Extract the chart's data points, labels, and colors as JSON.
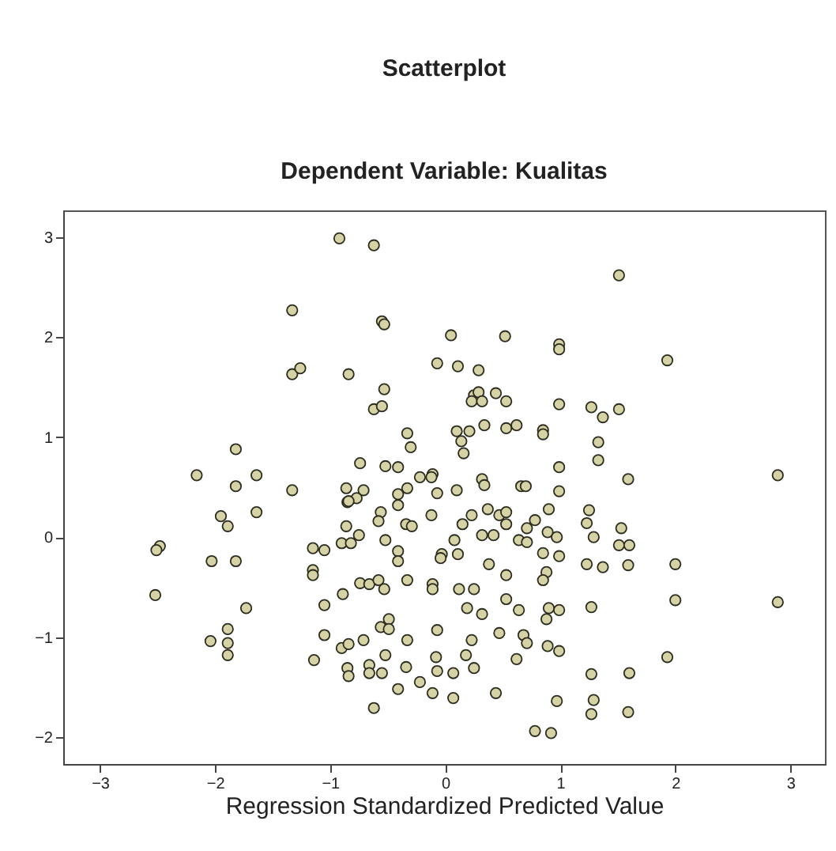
{
  "chart_data": {
    "type": "scatter",
    "title": "Scatterplot",
    "subtitle": "Dependent Variable: Kualitas",
    "xlabel": "Regression Standardized Predicted Value",
    "xlim": [
      -3.32,
      3.3
    ],
    "ylim": [
      -2.27,
      3.27
    ],
    "xticks": [
      -3,
      -2,
      -1,
      0,
      1,
      2,
      3
    ],
    "yticks": [
      -2,
      -1,
      0,
      1,
      2,
      3
    ],
    "grid": false,
    "marker": "circle",
    "x": [
      -0.92,
      -0.62,
      -1.33,
      -0.55,
      -0.53,
      -0.07,
      -1.33,
      -1.26,
      -0.84,
      -0.53,
      -0.62,
      -0.55,
      -0.33,
      -0.3,
      -1.82,
      -2.16,
      -1.82,
      -1.64,
      -1.33,
      -0.74,
      -0.52,
      -0.41,
      -0.22,
      -0.11,
      -0.12,
      -0.07,
      -0.33,
      -0.41,
      -0.86,
      -0.71,
      -0.77,
      -0.85,
      0.05,
      1.51,
      0.52,
      0.99,
      0.99,
      1.93,
      0.11,
      0.29,
      0.25,
      0.29,
      0.23,
      0.32,
      0.44,
      0.53,
      0.99,
      1.27,
      1.37,
      1.51,
      0.1,
      0.21,
      0.14,
      0.16,
      0.34,
      0.53,
      0.62,
      0.85,
      0.85,
      1.33,
      1.33,
      0.99,
      1.59,
      2.89,
      0.32,
      0.34,
      0.66,
      0.7,
      0.99,
      0.1,
      -2.48,
      -2.51,
      -2.52,
      -1.95,
      -1.89,
      -1.64,
      -2.03,
      -1.82,
      -1.73,
      -1.89,
      -2.04,
      -1.89,
      -1.89,
      -1.15,
      -1.05,
      -1.15,
      -1.15,
      -1.05,
      -1.05,
      -1.14,
      -0.9,
      -0.82,
      -0.86,
      -0.75,
      -0.84,
      -0.56,
      -0.58,
      -0.41,
      -0.52,
      -0.41,
      -0.41,
      -0.34,
      -0.29,
      -0.12,
      -0.03,
      -0.04,
      -0.89,
      -0.74,
      -0.66,
      -0.58,
      -0.53,
      -0.33,
      -0.11,
      -0.11,
      -0.49,
      -0.56,
      -0.49,
      -0.71,
      -0.9,
      -0.84,
      -0.33,
      -0.07,
      -0.52,
      -0.85,
      -0.84,
      -0.66,
      -0.66,
      -0.55,
      -0.34,
      -0.41,
      -0.22,
      -0.11,
      -0.08,
      -0.07,
      -0.62,
      0.23,
      0.37,
      0.47,
      0.53,
      0.15,
      0.32,
      0.42,
      0.53,
      0.71,
      0.78,
      0.9,
      0.64,
      0.71,
      0.89,
      0.97,
      1.25,
      1.23,
      1.29,
      1.53,
      1.51,
      1.6,
      0.08,
      0.11,
      0.38,
      0.85,
      0.99,
      1.23,
      1.37,
      1.59,
      2.0,
      0.53,
      0.88,
      0.85,
      0.12,
      0.25,
      0.53,
      0.19,
      0.32,
      0.64,
      0.88,
      0.9,
      0.99,
      1.27,
      2.0,
      2.89,
      0.47,
      0.23,
      0.68,
      0.71,
      0.89,
      0.99,
      0.62,
      0.18,
      0.25,
      0.07,
      1.93,
      1.27,
      1.6,
      0.07,
      0.44,
      0.97,
      1.29,
      1.27,
      1.59,
      0.78,
      0.92
    ],
    "series": [
      {
        "color": "#d5d3a6",
        "values": [
          2.99,
          2.92,
          2.27,
          2.16,
          2.13,
          1.74,
          1.63,
          1.69,
          1.63,
          1.48,
          1.28,
          1.31,
          1.04,
          0.9,
          0.88,
          0.62,
          0.51,
          0.62,
          0.47,
          0.74,
          0.71,
          0.7,
          0.6,
          0.63,
          0.6,
          0.44,
          0.49,
          0.43,
          0.49,
          0.47,
          0.39,
          0.35,
          2.02,
          2.62,
          2.01,
          1.93,
          1.88,
          1.77,
          1.71,
          1.67,
          1.42,
          1.45,
          1.36,
          1.36,
          1.44,
          1.36,
          1.33,
          1.3,
          1.2,
          1.28,
          1.06,
          1.06,
          0.96,
          0.84,
          1.12,
          1.09,
          1.12,
          1.07,
          1.03,
          0.95,
          0.77,
          0.7,
          0.58,
          0.62,
          0.58,
          0.52,
          0.51,
          0.51,
          0.46,
          0.47,
          -0.09,
          -0.13,
          -0.58,
          0.21,
          0.11,
          0.25,
          -0.24,
          -0.24,
          -0.71,
          -0.92,
          -1.04,
          -1.06,
          -1.18,
          -0.11,
          -0.13,
          -0.33,
          -0.38,
          -0.68,
          -0.98,
          -1.23,
          -0.06,
          -0.06,
          0.11,
          0.02,
          0.36,
          0.25,
          0.16,
          0.32,
          -0.03,
          -0.14,
          -0.24,
          0.13,
          0.11,
          0.22,
          -0.17,
          -0.21,
          -0.57,
          -0.46,
          -0.47,
          -0.43,
          -0.52,
          -0.43,
          -0.47,
          -0.52,
          -0.82,
          -0.9,
          -0.92,
          -1.03,
          -1.11,
          -1.07,
          -1.03,
          -0.93,
          -1.18,
          -1.31,
          -1.39,
          -1.28,
          -1.36,
          -1.36,
          -1.3,
          -1.52,
          -1.45,
          -1.56,
          -1.2,
          -1.34,
          -1.71,
          0.22,
          0.28,
          0.22,
          0.25,
          0.13,
          0.02,
          0.02,
          0.13,
          0.09,
          0.17,
          0.28,
          -0.03,
          -0.05,
          0.05,
          0.0,
          0.27,
          0.14,
          0.0,
          0.09,
          -0.08,
          -0.08,
          -0.03,
          -0.17,
          -0.27,
          -0.16,
          -0.19,
          -0.27,
          -0.3,
          -0.28,
          -0.27,
          -0.38,
          -0.35,
          -0.43,
          -0.52,
          -0.52,
          -0.62,
          -0.71,
          -0.77,
          -0.73,
          -0.82,
          -0.71,
          -0.73,
          -0.7,
          -0.63,
          -0.65,
          -0.96,
          -1.03,
          -0.98,
          -1.06,
          -1.09,
          -1.14,
          -1.22,
          -1.18,
          -1.31,
          -1.36,
          -1.2,
          -1.37,
          -1.36,
          -1.61,
          -1.56,
          -1.64,
          -1.63,
          -1.77,
          -1.75,
          -1.94,
          -1.96
        ]
      }
    ]
  }
}
